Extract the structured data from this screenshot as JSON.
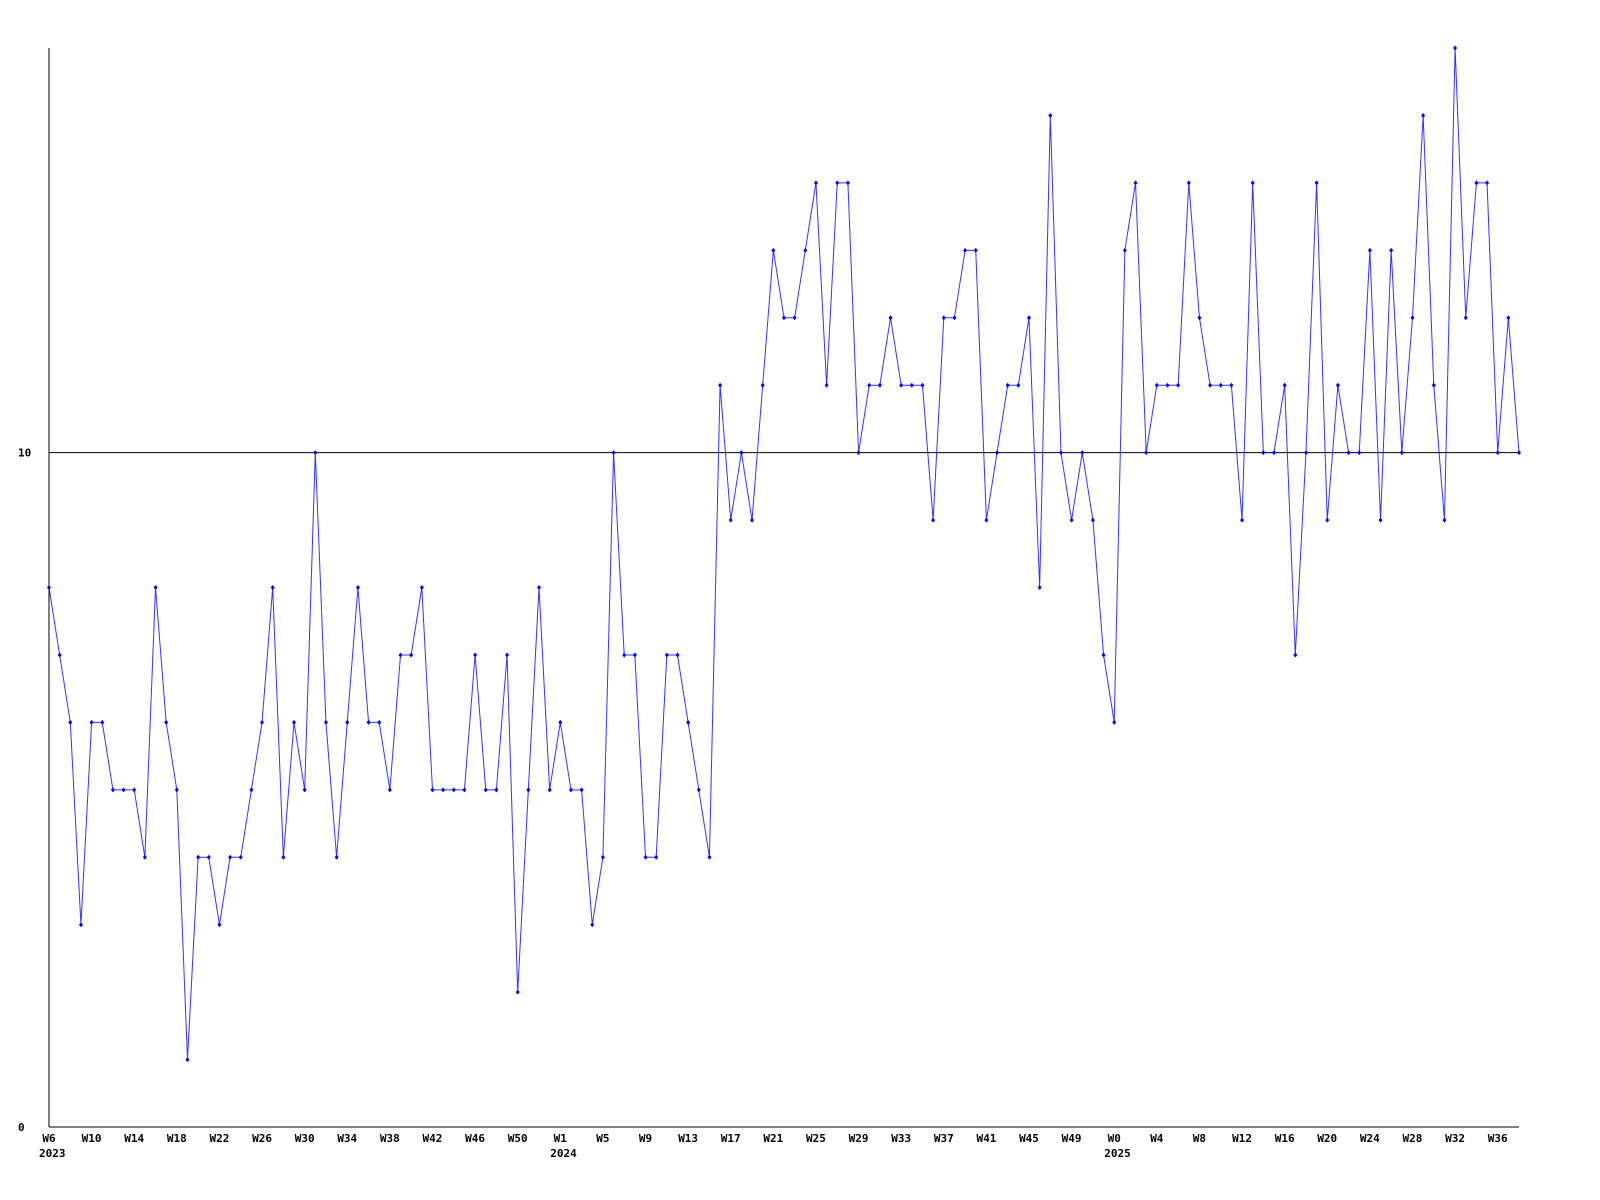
{
  "chart_data": {
    "type": "line",
    "categories": [
      "W6 2023",
      null,
      null,
      null,
      "W10",
      null,
      null,
      null,
      "W14",
      null,
      null,
      null,
      "W18",
      null,
      null,
      null,
      "W22",
      null,
      null,
      null,
      "W26",
      null,
      null,
      null,
      "W30",
      null,
      null,
      null,
      "W34",
      null,
      null,
      null,
      "W38",
      null,
      null,
      null,
      "W42",
      null,
      null,
      null,
      "W46",
      null,
      null,
      null,
      "W50",
      null,
      null,
      null,
      "W1 2024",
      null,
      null,
      null,
      "W5",
      null,
      null,
      null,
      "W9",
      null,
      null,
      null,
      "W13",
      null,
      null,
      null,
      "W17",
      null,
      null,
      null,
      "W21",
      null,
      null,
      null,
      "W25",
      null,
      null,
      null,
      "W29",
      null,
      null,
      null,
      "W33",
      null,
      null,
      null,
      "W37",
      null,
      null,
      null,
      "W41",
      null,
      null,
      null,
      "W45",
      null,
      null,
      null,
      "W49",
      null,
      null,
      null,
      "W0 2025",
      null,
      null,
      null,
      "W4",
      null,
      null,
      null,
      "W8",
      null,
      null,
      null,
      "W12",
      null,
      null,
      null,
      "W16",
      null,
      null,
      null,
      "W20",
      null,
      null,
      null,
      "W24",
      null,
      null,
      null,
      "W28",
      null,
      null,
      null,
      "W32",
      null,
      null,
      null,
      "W36",
      null,
      null
    ],
    "series": [
      {
        "color": "#0000ff",
        "values": [
          8,
          7,
          6,
          3,
          6,
          6,
          5,
          5,
          5,
          4,
          8,
          6,
          5,
          1,
          4,
          4,
          3,
          4,
          4,
          5,
          6,
          8,
          4,
          6,
          5,
          10,
          6,
          4,
          6,
          8,
          6,
          6,
          5,
          7,
          7,
          8,
          5,
          5,
          5,
          5,
          7,
          5,
          5,
          7,
          2,
          5,
          8,
          5,
          6,
          5,
          5,
          3,
          4,
          10,
          7,
          7,
          4,
          4,
          7,
          7,
          6,
          5,
          4,
          11,
          9,
          10,
          9,
          11,
          13,
          12,
          12,
          13,
          14,
          11,
          14,
          14,
          10,
          11,
          11,
          12,
          11,
          11,
          11,
          9,
          12,
          12,
          13,
          13,
          9,
          10,
          11,
          11,
          12,
          8,
          15,
          10,
          9,
          10,
          9,
          7,
          6,
          13,
          14,
          10,
          11,
          11,
          11,
          14,
          12,
          11,
          11,
          11,
          9,
          14,
          10,
          10,
          11,
          7,
          10,
          14,
          9,
          11,
          10,
          10,
          13,
          9,
          13,
          10,
          12,
          15,
          11,
          9,
          16,
          12,
          14,
          14,
          10,
          12,
          10
        ]
      }
    ],
    "ylim": [
      0,
      16
    ],
    "yticks": [
      0,
      10
    ],
    "grid": true
  }
}
